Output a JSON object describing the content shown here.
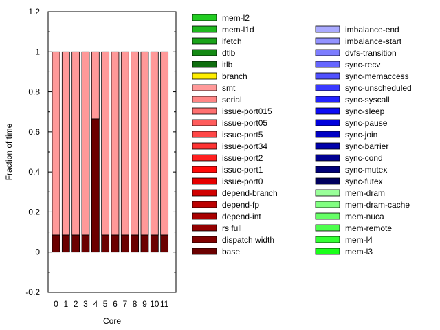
{
  "chart_data": {
    "type": "bar",
    "stacked": true,
    "xlabel": "Core",
    "ylabel": "Fraction of time",
    "ylim": [
      -0.2,
      1.2
    ],
    "yticks": [
      -0.2,
      0,
      0.2,
      0.4,
      0.6,
      0.8,
      1,
      1.2
    ],
    "ytick_labels": [
      "-0.2",
      "0",
      "0.2",
      "0.4",
      "0.6",
      "0.8",
      "1",
      "1.2"
    ],
    "categories": [
      "0",
      "1",
      "2",
      "3",
      "4",
      "5",
      "6",
      "7",
      "8",
      "9",
      "10",
      "11"
    ],
    "legend_position": "right",
    "series": [
      {
        "name": "base",
        "color": "#6b0000",
        "values": [
          0.085,
          0.085,
          0.085,
          0.085,
          0.665,
          0.085,
          0.085,
          0.085,
          0.085,
          0.085,
          0.085,
          0.085
        ]
      },
      {
        "name": "smt",
        "color": "#ff9999",
        "values": [
          0.915,
          0.915,
          0.915,
          0.915,
          0.335,
          0.915,
          0.915,
          0.915,
          0.915,
          0.915,
          0.915,
          0.915
        ]
      }
    ],
    "legend_left": [
      {
        "label": "mem-l2",
        "color": "#22cc22"
      },
      {
        "label": "mem-l1d",
        "color": "#1fb81f"
      },
      {
        "label": "ifetch",
        "color": "#1aa31a"
      },
      {
        "label": "dtlb",
        "color": "#148a14"
      },
      {
        "label": "itlb",
        "color": "#0f6e0f"
      },
      {
        "label": "branch",
        "color": "#ffee00"
      },
      {
        "label": "smt",
        "color": "#ff9999"
      },
      {
        "label": "serial",
        "color": "#ff8585"
      },
      {
        "label": "issue-port015",
        "color": "#ff7070"
      },
      {
        "label": "issue-port05",
        "color": "#ff5c5c"
      },
      {
        "label": "issue-port5",
        "color": "#ff4747"
      },
      {
        "label": "issue-port34",
        "color": "#ff3333"
      },
      {
        "label": "issue-port2",
        "color": "#ff1f1f"
      },
      {
        "label": "issue-port1",
        "color": "#ff0a0a"
      },
      {
        "label": "issue-port0",
        "color": "#e60000"
      },
      {
        "label": "depend-branch",
        "color": "#d10000"
      },
      {
        "label": "depend-fp",
        "color": "#bc0000"
      },
      {
        "label": "depend-int",
        "color": "#a80000"
      },
      {
        "label": "rs full",
        "color": "#930000"
      },
      {
        "label": "dispatch width",
        "color": "#800000"
      },
      {
        "label": "base",
        "color": "#6b0000"
      }
    ],
    "legend_right": [
      {
        "label": "imbalance-end",
        "color": "#aaaaff"
      },
      {
        "label": "imbalance-start",
        "color": "#9393ff"
      },
      {
        "label": "dvfs-transition",
        "color": "#7d7dff"
      },
      {
        "label": "sync-recv",
        "color": "#6666ff"
      },
      {
        "label": "sync-memaccess",
        "color": "#5050ff"
      },
      {
        "label": "sync-unscheduled",
        "color": "#3939ff"
      },
      {
        "label": "sync-syscall",
        "color": "#2323ff"
      },
      {
        "label": "sync-sleep",
        "color": "#0c0cf5"
      },
      {
        "label": "sync-pause",
        "color": "#0000dd"
      },
      {
        "label": "sync-join",
        "color": "#0000c4"
      },
      {
        "label": "sync-barrier",
        "color": "#0000aa"
      },
      {
        "label": "sync-cond",
        "color": "#000091"
      },
      {
        "label": "sync-mutex",
        "color": "#000077"
      },
      {
        "label": "sync-futex",
        "color": "#00005e"
      },
      {
        "label": "mem-dram",
        "color": "#99ff99"
      },
      {
        "label": "mem-dram-cache",
        "color": "#80ff80"
      },
      {
        "label": "mem-nuca",
        "color": "#66ff66"
      },
      {
        "label": "mem-remote",
        "color": "#4dff4d"
      },
      {
        "label": "mem-l4",
        "color": "#33ff33"
      },
      {
        "label": "mem-l3",
        "color": "#1aff1a"
      }
    ]
  }
}
